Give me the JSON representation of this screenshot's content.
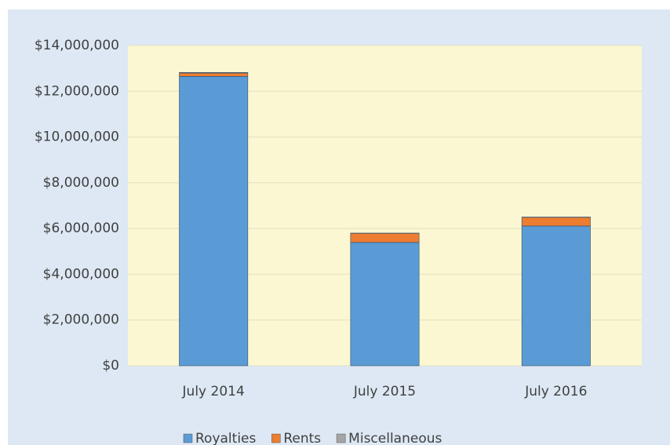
{
  "chart_data": {
    "type": "stacked_bar",
    "categories": [
      "July 2014",
      "July 2015",
      "July 2016"
    ],
    "series": [
      {
        "name": "Royalties",
        "color": "#5b9bd5",
        "values": [
          12650000,
          5390000,
          6110000
        ]
      },
      {
        "name": "Rents",
        "color": "#ed7d31",
        "values": [
          150000,
          400000,
          380000
        ]
      },
      {
        "name": "Miscellaneous",
        "color": "#a5a5a5",
        "values": [
          20000,
          10000,
          10000
        ]
      }
    ],
    "ylim": [
      0,
      14000000
    ],
    "yticks": [
      {
        "value": 0,
        "label": "$0"
      },
      {
        "value": 2000000,
        "label": "$2,000,000"
      },
      {
        "value": 4000000,
        "label": "$4,000,000"
      },
      {
        "value": 6000000,
        "label": "$6,000,000"
      },
      {
        "value": 8000000,
        "label": "$8,000,000"
      },
      {
        "value": 10000000,
        "label": "$10,000,000"
      },
      {
        "value": 12000000,
        "label": "$12,000,000"
      },
      {
        "value": 14000000,
        "label": "$14,000,000"
      }
    ],
    "grid": true,
    "legend": "bottom"
  }
}
